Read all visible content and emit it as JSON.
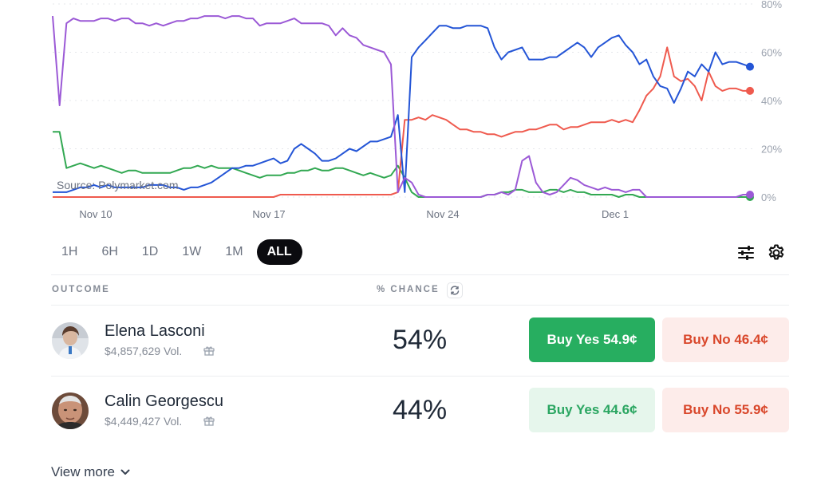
{
  "chart": {
    "source": "Source: Polymarket.com",
    "y_ticks": [
      "80%",
      "60%",
      "40%",
      "20%",
      "0%"
    ],
    "x_ticks": [
      "Nov 10",
      "Nov 17",
      "Nov 24",
      "Dec 1"
    ],
    "colors": {
      "lasconi": "#2455d6",
      "georgescu": "#ef5a4e",
      "purple": "#9b59d6",
      "green": "#32a852",
      "grid": "#e5e7eb"
    }
  },
  "chart_data": {
    "type": "line",
    "ylim": [
      0,
      80
    ],
    "series": [
      {
        "name": "",
        "color": "#2455d6",
        "values": [
          2,
          2,
          2,
          3,
          4,
          4,
          5,
          4,
          5,
          4,
          4,
          4,
          4,
          4,
          5,
          5,
          5,
          4,
          4,
          3,
          4,
          4,
          5,
          6,
          8,
          10,
          12,
          12,
          13,
          13,
          14,
          15,
          16,
          14,
          15,
          20,
          22,
          20,
          18,
          15,
          15,
          16,
          18,
          20,
          19,
          21,
          23,
          23,
          24,
          25,
          34,
          2,
          58,
          62,
          65,
          68,
          71,
          71,
          70,
          70,
          71,
          71,
          71,
          70,
          62,
          57,
          60,
          61,
          62,
          57,
          57,
          57,
          58,
          58,
          60,
          62,
          64,
          62,
          58,
          62,
          64,
          66,
          67,
          63,
          60,
          55,
          57,
          50,
          46,
          45,
          39,
          45,
          52,
          50,
          55,
          52,
          60,
          55,
          56,
          56,
          55,
          54
        ]
      },
      {
        "name": "",
        "color": "#ef5a4e",
        "values": [
          0,
          0,
          0,
          0,
          0,
          0,
          0,
          0,
          0,
          0,
          0,
          0,
          0,
          0,
          0,
          0,
          0,
          0,
          0,
          0,
          0,
          0,
          0,
          0,
          0,
          0,
          0,
          0,
          0,
          0,
          0,
          0,
          0,
          1,
          1,
          1,
          1,
          1,
          1,
          1,
          1,
          1,
          1,
          1,
          1,
          1,
          1,
          1,
          1,
          1,
          2,
          32,
          32,
          33,
          32,
          34,
          33,
          32,
          30,
          28,
          28,
          27,
          27,
          26,
          26,
          25,
          26,
          27,
          27,
          28,
          28,
          29,
          30,
          30,
          28,
          29,
          29,
          30,
          31,
          31,
          31,
          32,
          31,
          32,
          31,
          36,
          42,
          45,
          50,
          62,
          50,
          48,
          49,
          46,
          40,
          52,
          46,
          44,
          45,
          45,
          44,
          44
        ]
      },
      {
        "name": "",
        "color": "#9b59d6",
        "values": [
          75,
          38,
          72,
          74,
          73,
          73,
          73,
          74,
          74,
          73,
          74,
          74,
          72,
          72,
          71,
          72,
          71,
          72,
          73,
          73,
          74,
          74,
          75,
          75,
          75,
          74,
          75,
          75,
          74,
          74,
          71,
          72,
          72,
          72,
          73,
          74,
          72,
          72,
          72,
          72,
          71,
          67,
          70,
          67,
          66,
          63,
          62,
          61,
          60,
          55,
          2,
          8,
          6,
          1,
          0,
          0,
          0,
          0,
          0,
          0,
          0,
          0,
          0,
          1,
          1,
          2,
          1,
          3,
          15,
          17,
          6,
          2,
          1,
          2,
          5,
          8,
          7,
          5,
          4,
          3,
          4,
          3,
          3,
          2,
          3,
          3,
          0,
          0,
          0,
          0,
          0,
          0,
          0,
          0,
          0,
          0,
          0,
          0,
          0,
          0,
          1,
          1
        ]
      },
      {
        "name": "",
        "color": "#32a852",
        "values": [
          27,
          27,
          12,
          13,
          14,
          13,
          12,
          13,
          12,
          11,
          10,
          11,
          11,
          10,
          10,
          10,
          10,
          10,
          11,
          12,
          12,
          13,
          12,
          13,
          12,
          12,
          12,
          11,
          10,
          9,
          8,
          9,
          9,
          9,
          10,
          10,
          11,
          11,
          12,
          11,
          11,
          12,
          12,
          11,
          10,
          9,
          10,
          9,
          8,
          9,
          13,
          8,
          2,
          0,
          0,
          0,
          0,
          0,
          0,
          0,
          0,
          0,
          0,
          1,
          1,
          2,
          2,
          3,
          3,
          2,
          2,
          2,
          3,
          3,
          2,
          3,
          2,
          2,
          1,
          1,
          1,
          1,
          0,
          1,
          1,
          0,
          0,
          0,
          0,
          0,
          0,
          0,
          0,
          0,
          0,
          0,
          0,
          0,
          0,
          0,
          0,
          0
        ]
      }
    ]
  },
  "range_tabs": [
    "1H",
    "6H",
    "1D",
    "1W",
    "1M",
    "ALL"
  ],
  "active_range": "ALL",
  "table": {
    "outcome_header": "OUTCOME",
    "chance_header": "% CHANCE",
    "rows": [
      {
        "name": "Elena Lasconi",
        "volume": "$4,857,629 Vol.",
        "chance": "54%",
        "buy_yes": "Buy Yes 54.9¢",
        "buy_no": "Buy No 46.4¢"
      },
      {
        "name": "Calin Georgescu",
        "volume": "$4,449,427 Vol.",
        "chance": "44%",
        "buy_yes": "Buy Yes 44.6¢",
        "buy_no": "Buy No 55.9¢"
      }
    ]
  },
  "view_more": "View more",
  "icons": {
    "controls": "sliders-icon",
    "settings": "gear-icon",
    "refresh": "refresh-icon",
    "gift": "gift-icon",
    "chevron": "chevron-down-icon"
  }
}
